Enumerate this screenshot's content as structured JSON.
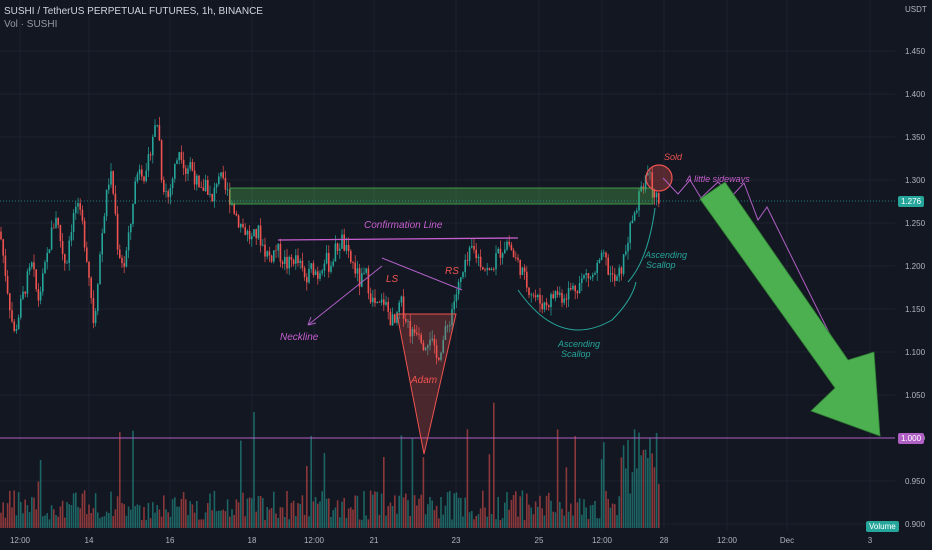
{
  "header": {
    "title": "SUSHI / TetherUS PERPETUAL FUTURES, 1h, BINANCE",
    "volume_indicator": "Vol · SUSHI"
  },
  "axis": {
    "currency": "USDT",
    "price_ticks": [
      "1.450",
      "1.400",
      "1.350",
      "1.300",
      "1.250",
      "1.200",
      "1.150",
      "1.100",
      "1.050",
      "1.000",
      "0.950",
      "0.900"
    ],
    "time_ticks": [
      "12:00",
      "14",
      "16",
      "18",
      "12:00",
      "21",
      "23",
      "25",
      "12:00",
      "28",
      "12:00",
      "Dec",
      "3"
    ]
  },
  "tags": {
    "current_price": "1.276",
    "target_price": "1.000",
    "volume": "Volume"
  },
  "annotations": {
    "confirmation_line": "Confirmation Line",
    "neckline": "Neckline",
    "left_shoulder": "LS",
    "right_shoulder": "RS",
    "adam": "Adam",
    "ascending_scallop_1": "Ascending\nScallop",
    "ascending_scallop_2": "Ascending\nScallop",
    "sold": "Sold",
    "sideways": "A little sideways"
  },
  "colors": {
    "background": "#131722",
    "up": "#26a69a",
    "down": "#ef5350",
    "purple": "#b05fc5",
    "green_zone": "#4caf50",
    "arrow": "#4caf50",
    "text_teal": "#26a69a",
    "text_red": "#ef5350"
  },
  "chart_data": {
    "type": "candlestick",
    "title": "SUSHI / TetherUS PERPETUAL FUTURES, 1h, BINANCE",
    "ylim": [
      0.9,
      1.47
    ],
    "current_price": 1.276,
    "target_price": 1.0,
    "resistance_zone": [
      1.272,
      1.292
    ],
    "confirmation_level": 1.233,
    "close_path": [
      [
        0,
        1.24
      ],
      [
        8,
        1.17
      ],
      [
        14,
        1.12
      ],
      [
        20,
        1.15
      ],
      [
        26,
        1.18
      ],
      [
        32,
        1.2
      ],
      [
        38,
        1.16
      ],
      [
        44,
        1.19
      ],
      [
        50,
        1.23
      ],
      [
        56,
        1.26
      ],
      [
        62,
        1.22
      ],
      [
        66,
        1.2
      ],
      [
        70,
        1.24
      ],
      [
        76,
        1.27
      ],
      [
        82,
        1.25
      ],
      [
        86,
        1.22
      ],
      [
        90,
        1.18
      ],
      [
        94,
        1.13
      ],
      [
        98,
        1.19
      ],
      [
        104,
        1.26
      ],
      [
        110,
        1.31
      ],
      [
        114,
        1.28
      ],
      [
        118,
        1.22
      ],
      [
        124,
        1.2
      ],
      [
        130,
        1.24
      ],
      [
        134,
        1.29
      ],
      [
        140,
        1.32
      ],
      [
        146,
        1.3
      ],
      [
        152,
        1.35
      ],
      [
        158,
        1.37
      ],
      [
        162,
        1.3
      ],
      [
        168,
        1.28
      ],
      [
        174,
        1.31
      ],
      [
        180,
        1.34
      ],
      [
        186,
        1.31
      ],
      [
        190,
        1.32
      ],
      [
        196,
        1.3
      ],
      [
        200,
        1.28
      ],
      [
        206,
        1.3
      ],
      [
        212,
        1.27
      ],
      [
        218,
        1.31
      ],
      [
        224,
        1.29
      ],
      [
        230,
        1.28
      ],
      [
        236,
        1.26
      ],
      [
        240,
        1.25
      ],
      [
        246,
        1.24
      ],
      [
        252,
        1.23
      ],
      [
        258,
        1.24
      ],
      [
        264,
        1.22
      ],
      [
        270,
        1.21
      ],
      [
        276,
        1.22
      ],
      [
        282,
        1.21
      ],
      [
        288,
        1.2
      ],
      [
        294,
        1.21
      ],
      [
        300,
        1.2
      ],
      [
        306,
        1.18
      ],
      [
        312,
        1.2
      ],
      [
        318,
        1.19
      ],
      [
        324,
        1.21
      ],
      [
        330,
        1.2
      ],
      [
        336,
        1.22
      ],
      [
        342,
        1.23
      ],
      [
        348,
        1.21
      ],
      [
        354,
        1.2
      ],
      [
        360,
        1.18
      ],
      [
        366,
        1.19
      ],
      [
        372,
        1.16
      ],
      [
        378,
        1.15
      ],
      [
        384,
        1.16
      ],
      [
        390,
        1.14
      ],
      [
        396,
        1.13
      ],
      [
        400,
        1.16
      ],
      [
        406,
        1.14
      ],
      [
        412,
        1.12
      ],
      [
        418,
        1.13
      ],
      [
        424,
        1.11
      ],
      [
        430,
        1.12
      ],
      [
        436,
        1.09
      ],
      [
        442,
        1.11
      ],
      [
        448,
        1.13
      ],
      [
        454,
        1.16
      ],
      [
        460,
        1.18
      ],
      [
        466,
        1.2
      ],
      [
        472,
        1.22
      ],
      [
        478,
        1.21
      ],
      [
        484,
        1.2
      ],
      [
        490,
        1.19
      ],
      [
        496,
        1.21
      ],
      [
        502,
        1.22
      ],
      [
        508,
        1.23
      ],
      [
        514,
        1.21
      ],
      [
        520,
        1.2
      ],
      [
        526,
        1.18
      ],
      [
        532,
        1.17
      ],
      [
        538,
        1.16
      ],
      [
        544,
        1.155
      ],
      [
        550,
        1.16
      ],
      [
        556,
        1.17
      ],
      [
        562,
        1.165
      ],
      [
        568,
        1.17
      ],
      [
        574,
        1.175
      ],
      [
        580,
        1.18
      ],
      [
        586,
        1.19
      ],
      [
        592,
        1.185
      ],
      [
        598,
        1.2
      ],
      [
        604,
        1.21
      ],
      [
        610,
        1.19
      ],
      [
        616,
        1.18
      ],
      [
        622,
        1.2
      ],
      [
        628,
        1.23
      ],
      [
        632,
        1.25
      ],
      [
        636,
        1.27
      ],
      [
        640,
        1.29
      ],
      [
        644,
        1.3
      ],
      [
        648,
        1.31
      ],
      [
        652,
        1.29
      ],
      [
        656,
        1.28
      ],
      [
        660,
        1.276
      ]
    ]
  }
}
